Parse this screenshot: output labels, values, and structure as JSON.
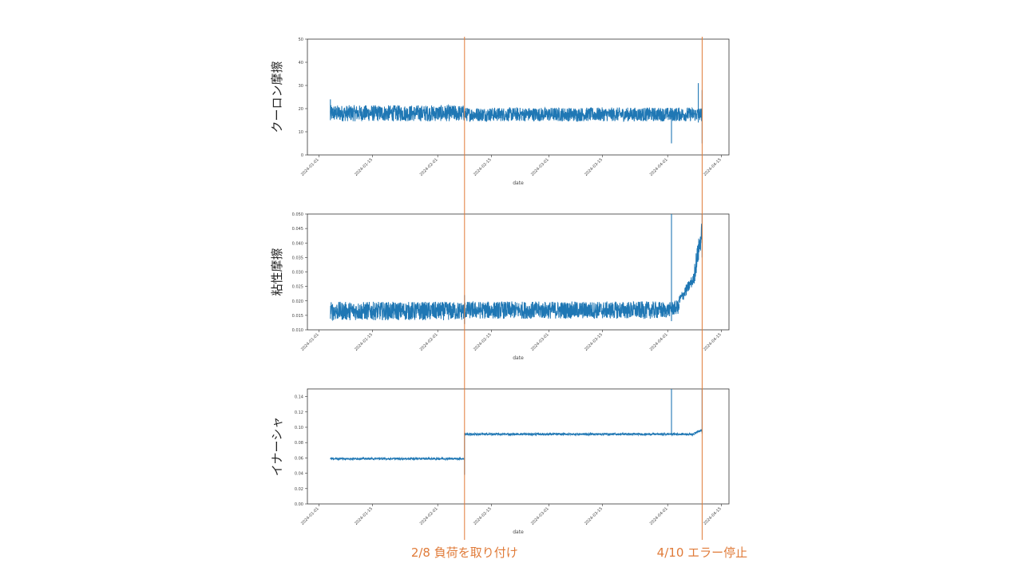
{
  "chart_data": [
    {
      "type": "line",
      "ylabel": "クーロン摩擦",
      "xlabel": "date",
      "ylim": [
        0,
        50
      ],
      "yticks": [
        0,
        10,
        20,
        30,
        40,
        50
      ],
      "xticks": [
        "2024-01-01",
        "2024-01-15",
        "2024-02-01",
        "2024-02-15",
        "2024-03-01",
        "2024-03-15",
        "2024-04-01",
        "2024-04-15"
      ],
      "series_color": "#1f77b4",
      "segments": [
        {
          "from": "2024-01-04",
          "to": "2024-02-08",
          "level": 18,
          "noise": 3.5
        },
        {
          "from": "2024-02-08",
          "to": "2024-04-10",
          "level": 17.5,
          "noise": 3.0
        }
      ],
      "spikes": [
        {
          "date": "2024-01-04",
          "low": 15,
          "high": 24
        },
        {
          "date": "2024-04-02",
          "low": 5,
          "high": 17
        },
        {
          "date": "2024-04-09",
          "low": 14,
          "high": 31
        },
        {
          "date": "2024-04-10",
          "low": 5,
          "high": 28
        }
      ]
    },
    {
      "type": "line",
      "ylabel": "粘性摩擦",
      "xlabel": "date",
      "ylim": [
        0.01,
        0.05
      ],
      "yticks": [
        0.01,
        0.015,
        0.02,
        0.025,
        0.03,
        0.035,
        0.04,
        0.045,
        0.05
      ],
      "ytick_labels": [
        "0.010",
        "0.015",
        "0.020",
        "0.025",
        "0.030",
        "0.035",
        "0.040",
        "0.045",
        "0.050"
      ],
      "xticks": [
        "2024-01-01",
        "2024-01-15",
        "2024-02-01",
        "2024-02-15",
        "2024-03-01",
        "2024-03-15",
        "2024-04-01",
        "2024-04-15"
      ],
      "series_color": "#1f77b4",
      "segments": [
        {
          "from": "2024-01-04",
          "to": "2024-02-08",
          "level": 0.0165,
          "noise": 0.0032
        },
        {
          "from": "2024-02-08",
          "to": "2024-03-31",
          "level": 0.0168,
          "noise": 0.003
        },
        {
          "from": "2024-03-31",
          "to": "2024-04-04",
          "level": 0.0165,
          "noise": 0.0025,
          "end_level": 0.018
        },
        {
          "from": "2024-04-04",
          "to": "2024-04-08",
          "level": 0.02,
          "noise": 0.002,
          "end_level": 0.028
        },
        {
          "from": "2024-04-08",
          "to": "2024-04-10",
          "level": 0.03,
          "noise": 0.004,
          "end_level": 0.044
        }
      ],
      "spikes": [
        {
          "date": "2024-02-08",
          "low": 0.012,
          "high": 0.022
        },
        {
          "date": "2024-04-02",
          "low": 0.013,
          "high": 0.05
        },
        {
          "date": "2024-04-10",
          "low": 0.035,
          "high": 0.05
        }
      ]
    },
    {
      "type": "line",
      "ylabel": "イナーシャ",
      "xlabel": "date",
      "ylim": [
        0,
        0.15
      ],
      "yticks": [
        0.0,
        0.02,
        0.04,
        0.06,
        0.08,
        0.1,
        0.12,
        0.14
      ],
      "ytick_labels": [
        "0.00",
        "0.02",
        "0.04",
        "0.06",
        "0.08",
        "0.10",
        "0.12",
        "0.14"
      ],
      "xticks": [
        "2024-01-01",
        "2024-01-15",
        "2024-02-01",
        "2024-02-15",
        "2024-03-01",
        "2024-03-15",
        "2024-04-01",
        "2024-04-15"
      ],
      "series_color": "#1f77b4",
      "segments": [
        {
          "from": "2024-01-04",
          "to": "2024-02-08",
          "level": 0.059,
          "noise": 0.0012
        },
        {
          "from": "2024-02-08",
          "to": "2024-04-08",
          "level": 0.091,
          "noise": 0.0013
        },
        {
          "from": "2024-04-08",
          "to": "2024-04-10",
          "level": 0.093,
          "noise": 0.0015,
          "end_level": 0.096
        }
      ],
      "spikes": [
        {
          "date": "2024-02-08",
          "low": 0.038,
          "high": 0.092
        },
        {
          "date": "2024-04-02",
          "low": 0.09,
          "high": 0.15
        },
        {
          "date": "2024-04-10",
          "low": 0.092,
          "high": 0.15
        }
      ]
    }
  ],
  "annotations": [
    {
      "date": "2024-02-08",
      "label": "2/8 負荷を取り付け"
    },
    {
      "date": "2024-04-10",
      "label": "4/10 エラー停止"
    }
  ],
  "annotation_color": "#e07b39"
}
